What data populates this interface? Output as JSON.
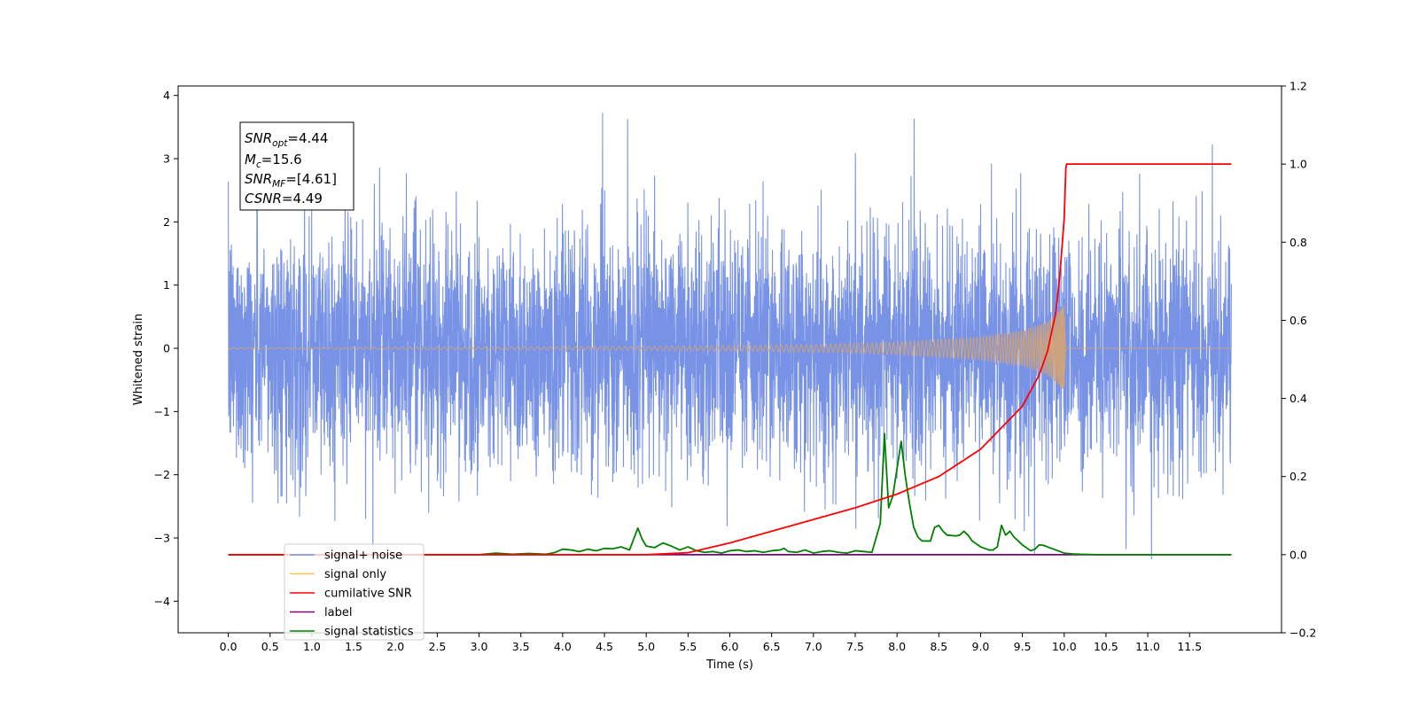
{
  "chart_data": {
    "type": "line",
    "title": "",
    "xlabel": "Time (s)",
    "ylabel": "Whitened strain",
    "y2label": "",
    "xlim": [
      -0.6,
      12.6
    ],
    "ylim": [
      -4.5,
      4.15
    ],
    "y2lim": [
      -0.2,
      1.2
    ],
    "xticks": [
      0.0,
      0.5,
      1.0,
      1.5,
      2.0,
      2.5,
      3.0,
      3.5,
      4.0,
      4.5,
      5.0,
      5.5,
      6.0,
      6.5,
      7.0,
      7.5,
      8.0,
      8.5,
      9.0,
      9.5,
      10.0,
      10.5,
      11.0,
      11.5
    ],
    "xtick_labels": [
      "0.0",
      "0.5",
      "1.0",
      "1.5",
      "2.0",
      "2.5",
      "3.0",
      "3.5",
      "4.0",
      "4.5",
      "5.0",
      "5.5",
      "6.0",
      "6.5",
      "7.0",
      "7.5",
      "8.0",
      "8.5",
      "9.0",
      "9.5",
      "10.0",
      "10.5",
      "11.0",
      "11.5"
    ],
    "yticks": [
      -4,
      -3,
      -2,
      -1,
      0,
      1,
      2,
      3,
      4
    ],
    "ytick_labels": [
      "−4",
      "−3",
      "−2",
      "−1",
      "0",
      "1",
      "2",
      "3",
      "4"
    ],
    "y2ticks": [
      -0.2,
      0.0,
      0.2,
      0.4,
      0.6,
      0.8,
      1.0,
      1.2
    ],
    "y2tick_labels": [
      "−0.2",
      "0.0",
      "0.2",
      "0.4",
      "0.6",
      "0.8",
      "1.0",
      "1.2"
    ],
    "grid": false,
    "legend_position": "bottom-left",
    "annotation": {
      "snr_opt": "=4.44",
      "mc": "=15.6",
      "snr_mf": "=[4.61]",
      "csnr": "=4.49"
    },
    "series": [
      {
        "name": "signal+ noise",
        "axis": "left",
        "color": "#7893e6",
        "time_range": [
          0.0,
          12.0
        ],
        "approx_std": 1.0,
        "approx_extremes": [
          -4.1,
          3.75
        ]
      },
      {
        "name": "signal only",
        "axis": "left",
        "color": "#d4a373",
        "envelope": {
          "x": [
            0.0,
            5.0,
            7.0,
            8.0,
            9.0,
            9.5,
            9.8,
            9.95,
            10.0,
            10.02
          ],
          "amp": [
            0.01,
            0.03,
            0.06,
            0.1,
            0.18,
            0.28,
            0.42,
            0.6,
            0.7,
            0.0
          ]
        },
        "merger_time": 10.02
      },
      {
        "name": "cumilative SNR",
        "axis": "right",
        "color": "#ff0000",
        "x": [
          0.0,
          5.0,
          5.5,
          6.0,
          6.5,
          7.0,
          7.5,
          8.0,
          8.5,
          9.0,
          9.5,
          9.7,
          9.8,
          9.9,
          9.95,
          10.0,
          10.02,
          10.03,
          11.5,
          12.0
        ],
        "y": [
          0.0,
          0.0,
          0.005,
          0.03,
          0.06,
          0.09,
          0.12,
          0.155,
          0.2,
          0.27,
          0.38,
          0.46,
          0.52,
          0.62,
          0.72,
          0.86,
          0.99,
          1.0,
          1.0,
          1.0
        ]
      },
      {
        "name": "label",
        "axis": "right",
        "color": "#7f007f",
        "x": [
          0.0,
          12.0
        ],
        "y": [
          0.0,
          0.0
        ]
      },
      {
        "name": "signal statistics",
        "axis": "right",
        "color": "#008000",
        "x": [
          0.0,
          3.0,
          3.2,
          3.4,
          3.6,
          3.8,
          3.9,
          4.0,
          4.1,
          4.2,
          4.3,
          4.4,
          4.5,
          4.6,
          4.7,
          4.8,
          4.85,
          4.9,
          4.95,
          5.0,
          5.1,
          5.2,
          5.3,
          5.4,
          5.5,
          5.6,
          5.7,
          5.8,
          5.9,
          6.0,
          6.1,
          6.2,
          6.3,
          6.4,
          6.5,
          6.6,
          6.65,
          6.7,
          6.8,
          6.9,
          7.0,
          7.1,
          7.2,
          7.3,
          7.4,
          7.5,
          7.6,
          7.7,
          7.8,
          7.85,
          7.9,
          7.95,
          8.0,
          8.05,
          8.1,
          8.15,
          8.2,
          8.25,
          8.3,
          8.4,
          8.45,
          8.5,
          8.55,
          8.6,
          8.7,
          8.75,
          8.8,
          8.85,
          8.9,
          9.0,
          9.1,
          9.15,
          9.2,
          9.25,
          9.3,
          9.35,
          9.4,
          9.5,
          9.6,
          9.65,
          9.7,
          9.75,
          9.8,
          9.9,
          10.0,
          10.1,
          10.2,
          10.4,
          12.0
        ],
        "y": [
          0.0,
          0.0,
          0.004,
          0.001,
          0.003,
          0.001,
          0.005,
          0.014,
          0.012,
          0.008,
          0.014,
          0.01,
          0.016,
          0.015,
          0.02,
          0.012,
          0.04,
          0.068,
          0.04,
          0.022,
          0.018,
          0.03,
          0.022,
          0.012,
          0.02,
          0.01,
          0.006,
          0.008,
          0.004,
          0.01,
          0.012,
          0.008,
          0.01,
          0.006,
          0.01,
          0.012,
          0.016,
          0.008,
          0.006,
          0.012,
          0.004,
          0.008,
          0.01,
          0.006,
          0.004,
          0.01,
          0.008,
          0.006,
          0.08,
          0.31,
          0.12,
          0.15,
          0.22,
          0.29,
          0.2,
          0.13,
          0.07,
          0.045,
          0.035,
          0.035,
          0.07,
          0.075,
          0.06,
          0.05,
          0.048,
          0.05,
          0.06,
          0.05,
          0.035,
          0.02,
          0.012,
          0.012,
          0.02,
          0.075,
          0.05,
          0.06,
          0.045,
          0.025,
          0.01,
          0.014,
          0.025,
          0.024,
          0.02,
          0.012,
          0.004,
          0.002,
          0.001,
          0.0,
          0.0
        ]
      }
    ]
  }
}
